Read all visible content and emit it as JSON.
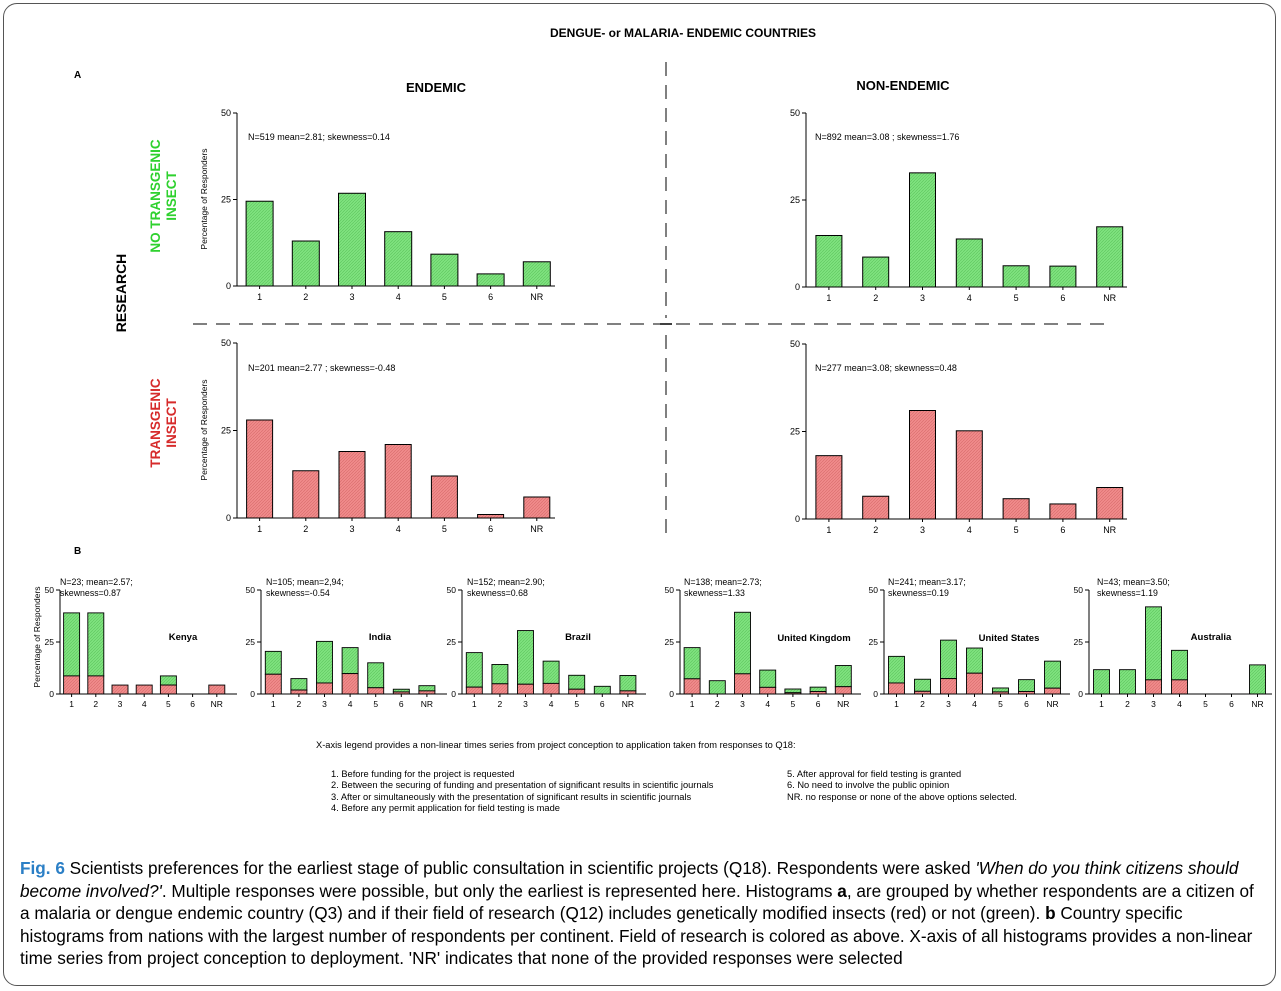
{
  "figure": {
    "main_title": "DENGUE- or MALARIA- ENDEMIC COUNTRIES",
    "panel_a_label": "A",
    "panel_b_label": "B",
    "col_endemic": "ENDEMIC",
    "col_nonendemic": "NON-ENDEMIC",
    "row_research": "RESEARCH",
    "row_no_transgenic": [
      "NO TRANSGENIC",
      "INSECT"
    ],
    "row_transgenic": [
      "TRANSGENIC",
      "INSECT"
    ],
    "ylabel": "Percentage of Responders",
    "colors": {
      "green": "#7fe27f",
      "red": "#f08b8b",
      "green_label": "#2ed12e",
      "red_label": "#d62b2b",
      "fig_blue": "#2b7fc6"
    }
  },
  "chart_data": [
    {
      "type": "bar",
      "panel": "A",
      "group": "endemic-no-transgenic",
      "categories": [
        "1",
        "2",
        "3",
        "4",
        "5",
        "6",
        "NR"
      ],
      "values": [
        24.5,
        13,
        26.8,
        15.7,
        9.2,
        3.5,
        7
      ],
      "ylim": [
        0,
        50
      ],
      "yticks": [
        0,
        25,
        50
      ],
      "stats": "N=519 mean=2.81; skewness=0.14",
      "color": "green"
    },
    {
      "type": "bar",
      "panel": "A",
      "group": "nonendemic-no-transgenic",
      "categories": [
        "1",
        "2",
        "3",
        "4",
        "5",
        "6",
        "NR"
      ],
      "values": [
        14.8,
        8.6,
        32.8,
        13.8,
        6.1,
        6,
        17.3
      ],
      "ylim": [
        0,
        50
      ],
      "yticks": [
        0,
        25,
        50
      ],
      "stats": "N=892 mean=3.08 ; skewness=1.76",
      "color": "green"
    },
    {
      "type": "bar",
      "panel": "A",
      "group": "endemic-transgenic",
      "categories": [
        "1",
        "2",
        "3",
        "4",
        "5",
        "6",
        "NR"
      ],
      "values": [
        28,
        13.5,
        19,
        21,
        12,
        1,
        6
      ],
      "ylim": [
        0,
        50
      ],
      "yticks": [
        0,
        25,
        50
      ],
      "stats": "N=201 mean=2.77 ; skewness=-0.48",
      "color": "red"
    },
    {
      "type": "bar",
      "panel": "A",
      "group": "nonendemic-transgenic",
      "categories": [
        "1",
        "2",
        "3",
        "4",
        "5",
        "6",
        "NR"
      ],
      "values": [
        18.1,
        6.5,
        31,
        25.2,
        5.8,
        4.3,
        9
      ],
      "ylim": [
        0,
        50
      ],
      "yticks": [
        0,
        25,
        50
      ],
      "stats": "N=277 mean=3.08; skewness=0.48",
      "color": "red"
    },
    {
      "type": "bar",
      "panel": "B",
      "country": "Kenya",
      "categories": [
        "1",
        "2",
        "3",
        "4",
        "5",
        "6",
        "NR"
      ],
      "total": [
        39,
        39,
        4.3,
        4.3,
        8.7,
        0,
        4.3
      ],
      "transgenic": [
        8.7,
        8.7,
        4.3,
        4.3,
        4.3,
        0,
        4.3
      ],
      "ylim": [
        0,
        50
      ],
      "yticks": [
        0,
        25,
        50
      ],
      "stats": [
        "N=23; mean=2.57;",
        "skewness=0.87"
      ]
    },
    {
      "type": "bar",
      "panel": "B",
      "country": "India",
      "categories": [
        "1",
        "2",
        "3",
        "4",
        "5",
        "6",
        "NR"
      ],
      "total": [
        20.5,
        7.4,
        25.3,
        22.3,
        15,
        2.3,
        4
      ],
      "transgenic": [
        9.5,
        1.9,
        5.3,
        9.8,
        3,
        1,
        1.5
      ],
      "ylim": [
        0,
        50
      ],
      "yticks": [
        0,
        25,
        50
      ],
      "stats": [
        "N=105; mean=2,94;",
        "skewness=-0.54"
      ]
    },
    {
      "type": "bar",
      "panel": "B",
      "country": "Brazil",
      "categories": [
        "1",
        "2",
        "3",
        "4",
        "5",
        "6",
        "NR"
      ],
      "total": [
        19.9,
        14.2,
        30.5,
        15.8,
        9,
        3.7,
        8.9
      ],
      "transgenic": [
        3.3,
        4.9,
        4.7,
        5.1,
        2.3,
        0,
        1.5
      ],
      "ylim": [
        0,
        50
      ],
      "yticks": [
        0,
        25,
        50
      ],
      "stats": [
        "N=152; mean=2.90;",
        "skewness=0.68"
      ]
    },
    {
      "type": "bar",
      "panel": "B",
      "country": "United Kingdom",
      "categories": [
        "1",
        "2",
        "3",
        "4",
        "5",
        "6",
        "NR"
      ],
      "total": [
        22.3,
        6.4,
        39.3,
        11.5,
        2.4,
        3.3,
        13.7
      ],
      "transgenic": [
        7.3,
        0,
        9.7,
        3.2,
        0.6,
        1.2,
        3.5
      ],
      "ylim": [
        0,
        50
      ],
      "yticks": [
        0,
        25,
        50
      ],
      "stats": [
        "N=138; mean=2.73;",
        "skewness=1.33"
      ]
    },
    {
      "type": "bar",
      "panel": "B",
      "country": "United States",
      "categories": [
        "1",
        "2",
        "3",
        "4",
        "5",
        "6",
        "NR"
      ],
      "total": [
        18.1,
        7.1,
        25.9,
        22.1,
        2.9,
        6.9,
        15.8
      ],
      "transgenic": [
        5.3,
        1.3,
        7.4,
        10,
        1,
        1.2,
        2.8
      ],
      "ylim": [
        0,
        50
      ],
      "yticks": [
        0,
        25,
        50
      ],
      "stats": [
        "N=241; mean=3.17;",
        "skewness=0.19"
      ]
    },
    {
      "type": "bar",
      "panel": "B",
      "country": "Australia",
      "categories": [
        "1",
        "2",
        "3",
        "4",
        "5",
        "6",
        "NR"
      ],
      "total": [
        11.7,
        11.7,
        41.9,
        21,
        0,
        0,
        14
      ],
      "transgenic": [
        0,
        0,
        6.8,
        6.8,
        0,
        0,
        0
      ],
      "ylim": [
        0,
        50
      ],
      "yticks": [
        0,
        25,
        50
      ],
      "stats": [
        "N=43; mean=3.50;",
        "skewness=1.19"
      ]
    }
  ],
  "legend": {
    "intro": "X-axis legend provides a non-linear times series from project conception to application taken from responses to Q18:",
    "left": [
      "1. Before funding for the project is requested",
      "2. Between the securing of funding and presentation of significant results in scientific journals",
      "3. After or simultaneously with the presentation of significant results in scientific journals",
      "4. Before any permit application for field testing is made"
    ],
    "right": [
      "5. After approval for field testing is granted",
      "6. No need to involve the public opinion",
      "NR. no response or none of the above options selected."
    ]
  },
  "caption": {
    "fig_label": "Fig. 6",
    "t1": " Scientists preferences for the earliest stage of public consultation in scientific projects (Q18). Respondents were asked ",
    "quote": "'When do you think citizens should become involved?'",
    "t2": ". Multiple responses were possible, but only the earliest is represented here. Histograms ",
    "a": "a",
    "t3": ", are grouped by whether respondents are a citizen of a malaria or dengue endemic country (Q3) and if their field of research (Q12) includes genetically modified insects (red) or not (green). ",
    "b": "b",
    "t4": " Country specific histograms from nations with the largest number of respondents per continent. Field of research is colored as above. X-axis of all histograms provides a non-linear time series from project conception to deployment. 'NR' indicates that none of the provided responses were selected"
  }
}
